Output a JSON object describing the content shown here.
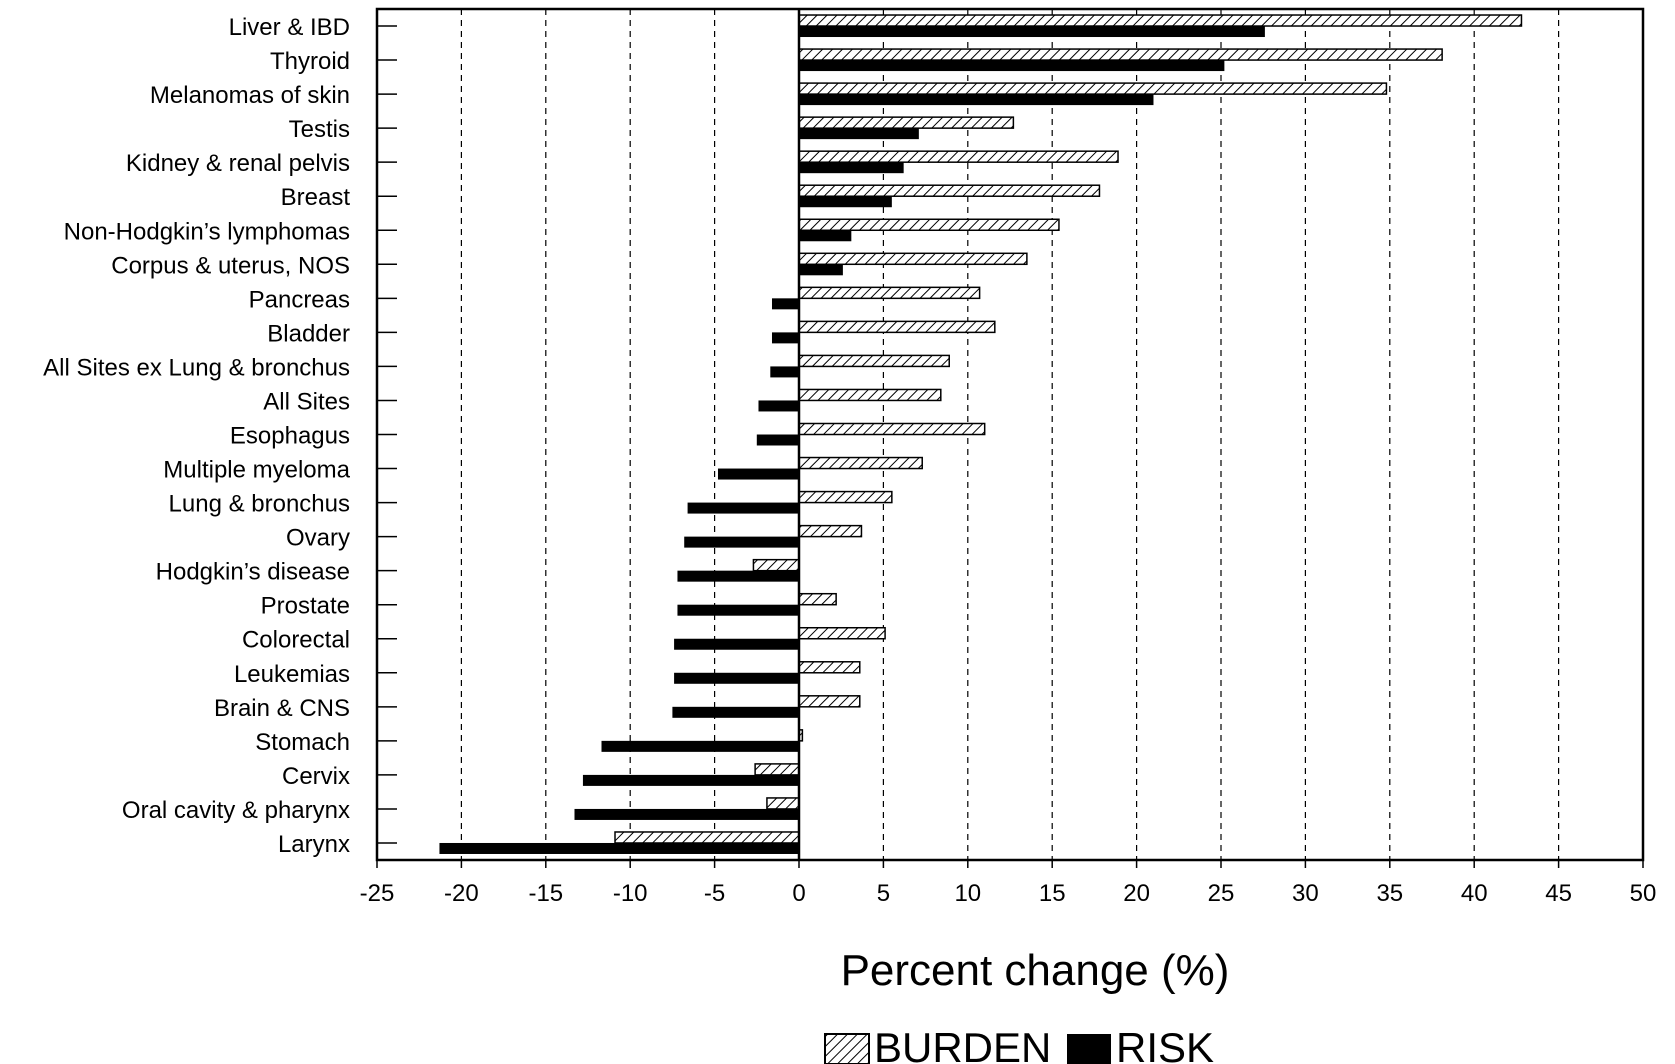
{
  "chart_data": {
    "type": "bar",
    "orientation": "horizontal",
    "categories": [
      "Liver & IBD",
      "Thyroid",
      "Melanomas of skin",
      "Testis",
      "Kidney & renal pelvis",
      "Breast",
      "Non-Hodgkin’s lymphomas",
      "Corpus & uterus, NOS",
      "Pancreas",
      "Bladder",
      "All Sites ex Lung & bronchus",
      "All Sites",
      "Esophagus",
      "Multiple myeloma",
      "Lung & bronchus",
      "Ovary",
      "Hodgkin’s disease",
      "Prostate",
      "Colorectal",
      "Leukemias",
      "Brain & CNS",
      "Stomach",
      "Cervix",
      "Oral cavity & pharynx",
      "Larynx"
    ],
    "series": [
      {
        "name": "BURDEN",
        "pattern": "hatched",
        "color": "#000000",
        "values": [
          42.8,
          38.1,
          34.8,
          12.7,
          18.9,
          17.8,
          15.4,
          13.5,
          10.7,
          11.6,
          8.9,
          8.4,
          11.0,
          7.3,
          5.5,
          3.7,
          -2.7,
          2.2,
          5.1,
          3.6,
          3.6,
          0.2,
          -2.6,
          -1.9,
          -10.9
        ]
      },
      {
        "name": "RISK",
        "pattern": "solid",
        "color": "#000000",
        "values": [
          27.6,
          25.2,
          21.0,
          7.1,
          6.2,
          5.5,
          3.1,
          2.6,
          -1.6,
          -1.6,
          -1.7,
          -2.4,
          -2.5,
          -4.8,
          -6.6,
          -6.8,
          -7.2,
          -7.2,
          -7.4,
          -7.4,
          -7.5,
          -11.7,
          -12.8,
          -13.3,
          -21.3
        ]
      }
    ],
    "xlabel": "Percent change (%)",
    "ylabel": "",
    "xlim": [
      -25,
      50
    ],
    "x_ticks": [
      -25,
      -20,
      -15,
      -10,
      -5,
      0,
      5,
      10,
      15,
      20,
      25,
      30,
      35,
      40,
      45,
      50
    ],
    "grid": "vertical dashed lines",
    "legend_position": "bottom-right"
  }
}
